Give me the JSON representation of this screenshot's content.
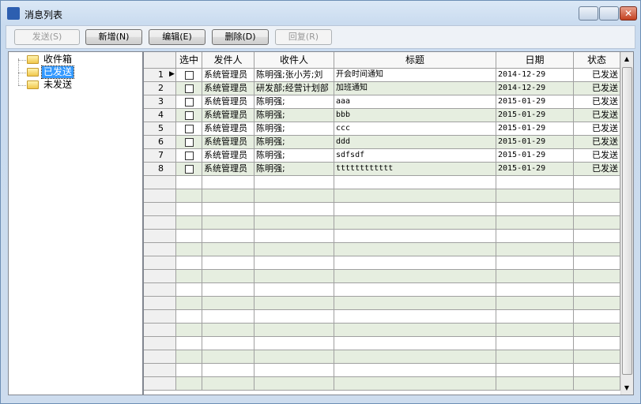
{
  "window": {
    "title": "消息列表"
  },
  "toolbar": {
    "buttons": [
      {
        "label": "发送(S)",
        "enabled": false
      },
      {
        "label": "新增(N)",
        "enabled": true
      },
      {
        "label": "编辑(E)",
        "enabled": true
      },
      {
        "label": "删除(D)",
        "enabled": true
      },
      {
        "label": "回复(R)",
        "enabled": false
      }
    ]
  },
  "tree": {
    "items": [
      "收件箱",
      "已发送",
      "未发送"
    ],
    "selected": 1
  },
  "grid": {
    "columns": [
      "选中",
      "发件人",
      "收件人",
      "标题",
      "日期",
      "状态"
    ],
    "current_row": 0,
    "rows": [
      {
        "num": 1,
        "sender": "系统管理员",
        "recipient": "陈明强;张小芳;刘",
        "title": "开会时间通知",
        "date": "2014-12-29",
        "status": "已发送"
      },
      {
        "num": 2,
        "sender": "系统管理员",
        "recipient": "研发部;经营计划部",
        "title": "加班通知",
        "date": "2014-12-29",
        "status": "已发送"
      },
      {
        "num": 3,
        "sender": "系统管理员",
        "recipient": "陈明强;",
        "title": "aaa",
        "date": "2015-01-29",
        "status": "已发送"
      },
      {
        "num": 4,
        "sender": "系统管理员",
        "recipient": "陈明强;",
        "title": "bbb",
        "date": "2015-01-29",
        "status": "已发送"
      },
      {
        "num": 5,
        "sender": "系统管理员",
        "recipient": "陈明强;",
        "title": "ccc",
        "date": "2015-01-29",
        "status": "已发送"
      },
      {
        "num": 6,
        "sender": "系统管理员",
        "recipient": "陈明强;",
        "title": "ddd",
        "date": "2015-01-29",
        "status": "已发送"
      },
      {
        "num": 7,
        "sender": "系统管理员",
        "recipient": "陈明强;",
        "title": "sdfsdf",
        "date": "2015-01-29",
        "status": "已发送"
      },
      {
        "num": 8,
        "sender": "系统管理员",
        "recipient": "陈明强;",
        "title": "tttttttttttt",
        "date": "2015-01-29",
        "status": "已发送"
      }
    ]
  }
}
